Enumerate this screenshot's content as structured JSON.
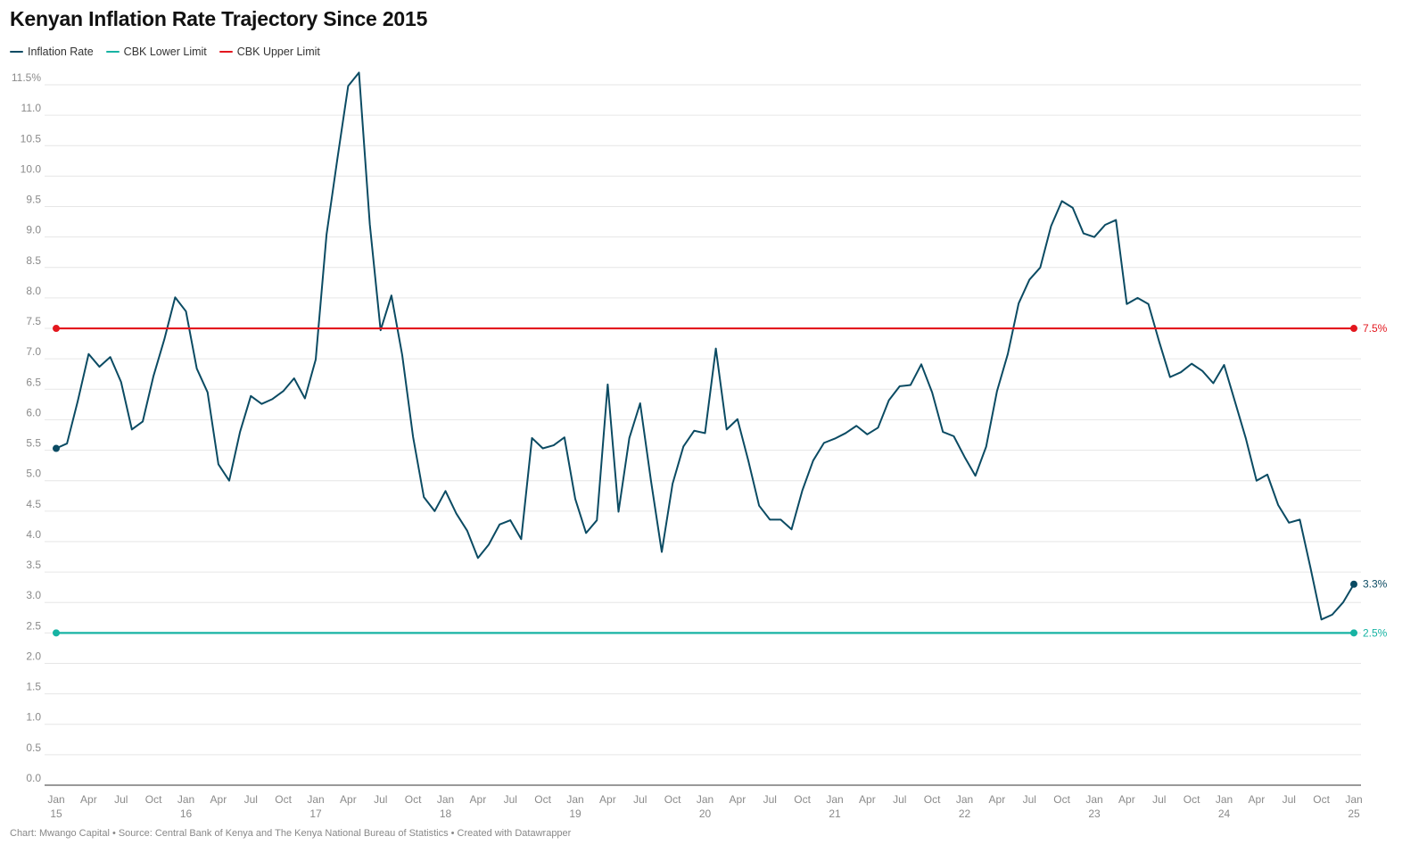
{
  "header": {
    "title": "Kenyan Inflation Rate Trajectory Since 2015"
  },
  "legend": [
    {
      "label": "Inflation Rate",
      "color": "#0b4b63"
    },
    {
      "label": "CBK Lower Limit",
      "color": "#17b3a3"
    },
    {
      "label": "CBK Upper Limit",
      "color": "#e3171e"
    }
  ],
  "footer": {
    "credit": "Chart: Mwango Capital • Source: Central Bank of Kenya and The Kenya National Bureau of Statistics • Created with Datawrapper"
  },
  "chart_data": {
    "type": "line",
    "title": "Kenyan Inflation Rate Trajectory Since 2015",
    "xlabel": "",
    "ylabel": "",
    "ylim": [
      0,
      11.5
    ],
    "y_ticks": [
      "0.0",
      "0.5",
      "1.0",
      "1.5",
      "2.0",
      "2.5",
      "3.0",
      "3.5",
      "4.0",
      "4.5",
      "5.0",
      "5.5",
      "6.0",
      "6.5",
      "7.0",
      "7.5",
      "8.0",
      "8.5",
      "9.0",
      "9.5",
      "10.0",
      "10.5",
      "11.0",
      "11.5%"
    ],
    "x_ticks": [
      {
        "month": "Jan",
        "year": "15"
      },
      {
        "month": "Apr",
        "year": ""
      },
      {
        "month": "Jul",
        "year": ""
      },
      {
        "month": "Oct",
        "year": ""
      },
      {
        "month": "Jan",
        "year": "16"
      },
      {
        "month": "Apr",
        "year": ""
      },
      {
        "month": "Jul",
        "year": ""
      },
      {
        "month": "Oct",
        "year": ""
      },
      {
        "month": "Jan",
        "year": "17"
      },
      {
        "month": "Apr",
        "year": ""
      },
      {
        "month": "Jul",
        "year": ""
      },
      {
        "month": "Oct",
        "year": ""
      },
      {
        "month": "Jan",
        "year": "18"
      },
      {
        "month": "Apr",
        "year": ""
      },
      {
        "month": "Jul",
        "year": ""
      },
      {
        "month": "Oct",
        "year": ""
      },
      {
        "month": "Jan",
        "year": "19"
      },
      {
        "month": "Apr",
        "year": ""
      },
      {
        "month": "Jul",
        "year": ""
      },
      {
        "month": "Oct",
        "year": ""
      },
      {
        "month": "Jan",
        "year": "20"
      },
      {
        "month": "Apr",
        "year": ""
      },
      {
        "month": "Jul",
        "year": ""
      },
      {
        "month": "Oct",
        "year": ""
      },
      {
        "month": "Jan",
        "year": "21"
      },
      {
        "month": "Apr",
        "year": ""
      },
      {
        "month": "Jul",
        "year": ""
      },
      {
        "month": "Oct",
        "year": ""
      },
      {
        "month": "Jan",
        "year": "22"
      },
      {
        "month": "Apr",
        "year": ""
      },
      {
        "month": "Jul",
        "year": ""
      },
      {
        "month": "Oct",
        "year": ""
      },
      {
        "month": "Jan",
        "year": "23"
      },
      {
        "month": "Apr",
        "year": ""
      },
      {
        "month": "Jul",
        "year": ""
      },
      {
        "month": "Oct",
        "year": ""
      },
      {
        "month": "Jan",
        "year": "24"
      },
      {
        "month": "Apr",
        "year": ""
      },
      {
        "month": "Jul",
        "year": ""
      },
      {
        "month": "Oct",
        "year": ""
      },
      {
        "month": "Jan",
        "year": "25"
      }
    ],
    "x": [
      "2015-01",
      "2015-02",
      "2015-03",
      "2015-04",
      "2015-05",
      "2015-06",
      "2015-07",
      "2015-08",
      "2015-09",
      "2015-10",
      "2015-11",
      "2015-12",
      "2016-01",
      "2016-02",
      "2016-03",
      "2016-04",
      "2016-05",
      "2016-06",
      "2016-07",
      "2016-08",
      "2016-09",
      "2016-10",
      "2016-11",
      "2016-12",
      "2017-01",
      "2017-02",
      "2017-03",
      "2017-04",
      "2017-05",
      "2017-06",
      "2017-07",
      "2017-08",
      "2017-09",
      "2017-10",
      "2017-11",
      "2017-12",
      "2018-01",
      "2018-02",
      "2018-03",
      "2018-04",
      "2018-05",
      "2018-06",
      "2018-07",
      "2018-08",
      "2018-09",
      "2018-10",
      "2018-11",
      "2018-12",
      "2019-01",
      "2019-02",
      "2019-03",
      "2019-04",
      "2019-05",
      "2019-06",
      "2019-07",
      "2019-08",
      "2019-09",
      "2019-10",
      "2019-11",
      "2019-12",
      "2020-01",
      "2020-02",
      "2020-03",
      "2020-04",
      "2020-05",
      "2020-06",
      "2020-07",
      "2020-08",
      "2020-09",
      "2020-10",
      "2020-11",
      "2020-12",
      "2021-01",
      "2021-02",
      "2021-03",
      "2021-04",
      "2021-05",
      "2021-06",
      "2021-07",
      "2021-08",
      "2021-09",
      "2021-10",
      "2021-11",
      "2021-12",
      "2022-01",
      "2022-02",
      "2022-03",
      "2022-04",
      "2022-05",
      "2022-06",
      "2022-07",
      "2022-08",
      "2022-09",
      "2022-10",
      "2022-11",
      "2022-12",
      "2023-01",
      "2023-02",
      "2023-03",
      "2023-04",
      "2023-05",
      "2023-06",
      "2023-07",
      "2023-08",
      "2023-09",
      "2023-10",
      "2023-11",
      "2023-12",
      "2024-01",
      "2024-02",
      "2024-03",
      "2024-04",
      "2024-05",
      "2024-06",
      "2024-07",
      "2024-08",
      "2024-09",
      "2024-10",
      "2024-11",
      "2024-12",
      "2025-01"
    ],
    "series": [
      {
        "name": "Inflation Rate",
        "color": "#0b4b63",
        "end_label": "3.3%",
        "values": [
          5.53,
          5.61,
          6.31,
          7.08,
          6.87,
          7.03,
          6.62,
          5.84,
          5.97,
          6.72,
          7.32,
          8.01,
          7.78,
          6.84,
          6.45,
          5.27,
          5.0,
          5.8,
          6.39,
          6.26,
          6.34,
          6.47,
          6.68,
          6.35,
          6.99,
          9.04,
          10.28,
          11.48,
          11.7,
          9.21,
          7.47,
          8.04,
          7.06,
          5.72,
          4.73,
          4.5,
          4.83,
          4.46,
          4.18,
          3.73,
          3.95,
          4.28,
          4.35,
          4.04,
          5.7,
          5.53,
          5.58,
          5.71,
          4.7,
          4.14,
          4.35,
          6.58,
          4.49,
          5.7,
          6.27,
          5.0,
          3.83,
          4.95,
          5.56,
          5.82,
          5.78,
          7.17,
          5.84,
          6.01,
          5.33,
          4.59,
          4.36,
          4.36,
          4.2,
          4.84,
          5.33,
          5.62,
          5.69,
          5.78,
          5.9,
          5.76,
          5.87,
          6.32,
          6.55,
          6.57,
          6.91,
          6.45,
          5.8,
          5.73,
          5.39,
          5.08,
          5.56,
          6.47,
          7.08,
          7.91,
          8.3,
          8.5,
          9.18,
          9.59,
          9.48,
          9.06,
          9.0,
          9.2,
          9.28,
          7.9,
          8.0,
          7.9,
          7.28,
          6.7,
          6.78,
          6.92,
          6.8,
          6.6,
          6.9,
          6.3,
          5.7,
          5.0,
          5.1,
          4.6,
          4.31,
          4.36,
          3.56,
          2.72,
          2.8,
          3.0,
          3.3
        ]
      },
      {
        "name": "CBK Lower Limit",
        "color": "#17b3a3",
        "end_label": "2.5%",
        "constant": 2.5
      },
      {
        "name": "CBK Upper Limit",
        "color": "#e3171e",
        "end_label": "7.5%",
        "constant": 7.5
      }
    ],
    "grid": true,
    "legend_position": "top-left"
  }
}
